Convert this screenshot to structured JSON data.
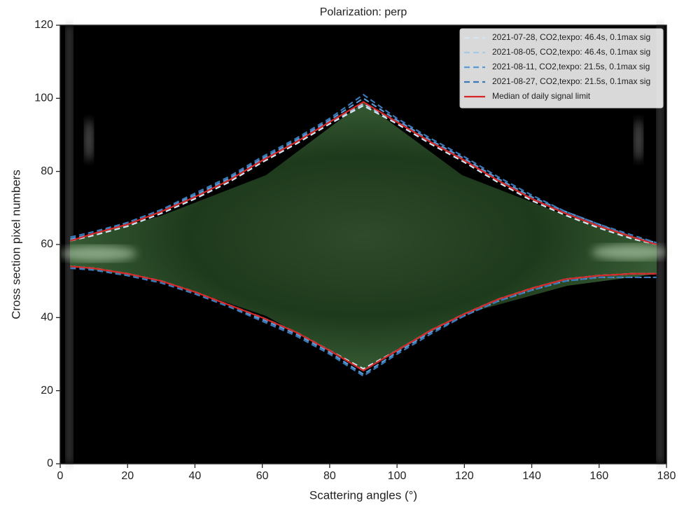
{
  "chart_data": {
    "type": "line",
    "title": "Polarization: perp",
    "xlabel": "Scattering angles (°)",
    "ylabel": "Cross section pixel numbers",
    "xlim": [
      0,
      180
    ],
    "ylim": [
      0,
      120
    ],
    "xticks": [
      0,
      20,
      40,
      60,
      80,
      100,
      120,
      140,
      160,
      180
    ],
    "yticks": [
      0,
      20,
      40,
      60,
      80,
      100,
      120
    ],
    "legend": "upper right",
    "x": [
      3,
      10,
      20,
      30,
      40,
      50,
      60,
      70,
      80,
      90,
      100,
      110,
      120,
      130,
      140,
      150,
      160,
      170,
      177
    ],
    "series": [
      {
        "name": "2021-07-28, CO2,texpo: 46.4s, 0.1max sig",
        "color": "#d4e6f2",
        "dash": true,
        "upper": [
          61,
          62.5,
          65,
          68.5,
          72.5,
          77,
          82.5,
          87.5,
          93,
          98,
          93,
          87.5,
          82.5,
          77,
          72,
          68,
          64.5,
          61.5,
          60
        ],
        "lower": [
          54,
          53.5,
          52,
          50,
          47,
          43.5,
          40,
          36,
          31,
          26,
          31,
          36.5,
          41,
          45,
          48,
          50.5,
          51.5,
          52,
          52
        ]
      },
      {
        "name": "2021-08-05, CO2,texpo: 46.4s, 0.1max sig",
        "color": "#a6cbe2",
        "dash": true,
        "upper": [
          61,
          63,
          65.5,
          69,
          73,
          77.5,
          83,
          88,
          93.5,
          98.5,
          93.5,
          88,
          83,
          77.5,
          72.5,
          68.5,
          65,
          62,
          60
        ],
        "lower": [
          54,
          53.5,
          52,
          50,
          47,
          43.5,
          40,
          36,
          31,
          25.5,
          31,
          36.5,
          41,
          45,
          48,
          50.5,
          51.5,
          52,
          52
        ]
      },
      {
        "name": "2021-08-11, CO2,texpo: 21.5s, 0.1max sig",
        "color": "#5a9bd5",
        "dash": true,
        "upper": [
          61.5,
          63,
          66,
          69.5,
          73.5,
          78,
          83.5,
          88.5,
          94,
          100,
          94,
          88.5,
          83.5,
          78,
          73,
          69,
          65.5,
          62,
          60.5
        ],
        "lower": [
          54,
          53,
          51.5,
          49.5,
          46.5,
          43,
          39.5,
          35.5,
          30.5,
          24.5,
          30.5,
          36,
          40.5,
          44.5,
          47.5,
          50,
          51,
          51,
          51
        ]
      },
      {
        "name": "2021-08-27, CO2,texpo: 21.5s, 0.1max sig",
        "color": "#3b79b8",
        "dash": true,
        "upper": [
          62,
          63.5,
          66,
          69.5,
          74,
          78.5,
          84,
          89,
          94.5,
          101,
          94.5,
          89,
          84,
          78.5,
          73.5,
          69,
          65.5,
          62.5,
          60.5
        ],
        "lower": [
          53.5,
          53,
          51.5,
          49.5,
          46.5,
          43,
          39,
          35,
          30,
          24,
          30,
          35.5,
          40.5,
          44.5,
          47.5,
          50,
          51,
          51,
          51
        ]
      },
      {
        "name": "Median of daily signal limit",
        "color": "#d62728",
        "dash": false,
        "upper": [
          61,
          63,
          65.5,
          69,
          73,
          77.5,
          83,
          88,
          93.5,
          99,
          93.5,
          88,
          83,
          77.5,
          72.5,
          68.5,
          65,
          62,
          60
        ],
        "lower": [
          54,
          53.5,
          52,
          50,
          47,
          43.5,
          40,
          36,
          31,
          25.5,
          31,
          36.5,
          41,
          45,
          48,
          50.5,
          51.5,
          52,
          52
        ]
      }
    ]
  }
}
